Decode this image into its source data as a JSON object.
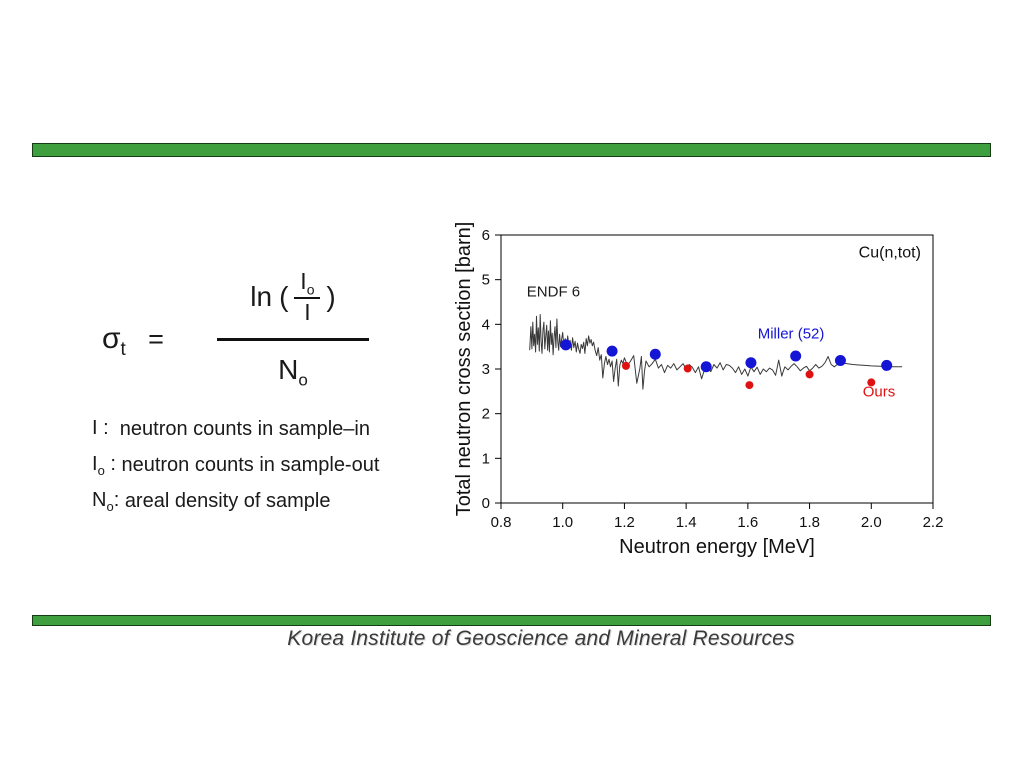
{
  "slide": {
    "background": "#ffffff",
    "bar_color": "#3f9f3f",
    "bar_border_color": "#143d14",
    "footer": "Korea Institute of Geoscience and Mineral Resources"
  },
  "formula": {
    "lhs_base": "σ",
    "lhs_sub": "t",
    "equals": "=",
    "func": "ln",
    "open_paren": "(",
    "num_base": "I",
    "num_sub": "o",
    "inner_den": "I",
    "close_paren": ")",
    "den_base": "N",
    "den_sub": "o"
  },
  "definitions": [
    {
      "sym": "I",
      "sub": "",
      "sep": " :  ",
      "text": "neutron counts in sample–in"
    },
    {
      "sym": "I",
      "sub": "o",
      "sep": " : ",
      "text": "neutron counts in sample-out"
    },
    {
      "sym": "N",
      "sub": "o",
      "sep": ": ",
      "text": "areal density of sample"
    }
  ],
  "chart_data": {
    "type": "line+scatter",
    "title": "Cu(n,tot)",
    "xlabel": "Neutron energy [MeV]",
    "ylabel": "Total neutron cross section [barn]",
    "xlim": [
      0.8,
      2.2
    ],
    "ylim": [
      0,
      6
    ],
    "xticks": [
      0.8,
      1.0,
      1.2,
      1.4,
      1.6,
      1.8,
      2.0,
      2.2
    ],
    "yticks": [
      0,
      1,
      2,
      3,
      4,
      5,
      6
    ],
    "grid": false,
    "frame": true,
    "annotation": {
      "text": "Cu(n,tot)",
      "x": 2.06,
      "y": 5.5,
      "color": "#111111"
    },
    "series": [
      {
        "name": "ENDF 6",
        "type": "line",
        "color": "#3a3a3a",
        "label": {
          "text": "ENDF 6",
          "x": 0.97,
          "y": 4.62,
          "color": "#1a1a1a"
        },
        "points": [
          [
            0.893,
            3.42
          ],
          [
            0.897,
            3.95
          ],
          [
            0.9,
            3.45
          ],
          [
            0.903,
            4.05
          ],
          [
            0.906,
            3.52
          ],
          [
            0.909,
            3.78
          ],
          [
            0.912,
            3.38
          ],
          [
            0.915,
            4.18
          ],
          [
            0.918,
            3.55
          ],
          [
            0.921,
            3.92
          ],
          [
            0.924,
            3.4
          ],
          [
            0.927,
            4.22
          ],
          [
            0.93,
            3.62
          ],
          [
            0.933,
            3.35
          ],
          [
            0.936,
            3.88
          ],
          [
            0.939,
            4.05
          ],
          [
            0.942,
            3.45
          ],
          [
            0.945,
            3.72
          ],
          [
            0.948,
            3.98
          ],
          [
            0.951,
            3.42
          ],
          [
            0.954,
            3.85
          ],
          [
            0.957,
            3.38
          ],
          [
            0.96,
            4.08
          ],
          [
            0.963,
            3.55
          ],
          [
            0.966,
            3.8
          ],
          [
            0.969,
            3.32
          ],
          [
            0.972,
            3.72
          ],
          [
            0.975,
            3.95
          ],
          [
            0.978,
            3.48
          ],
          [
            0.981,
            4.12
          ],
          [
            0.984,
            3.6
          ],
          [
            0.987,
            3.42
          ],
          [
            0.99,
            3.78
          ],
          [
            0.993,
            3.5
          ],
          [
            0.996,
            3.65
          ],
          [
            1.0,
            3.82
          ],
          [
            1.004,
            3.48
          ],
          [
            1.008,
            3.68
          ],
          [
            1.012,
            3.45
          ],
          [
            1.016,
            3.74
          ],
          [
            1.02,
            3.52
          ],
          [
            1.024,
            3.64
          ],
          [
            1.028,
            3.42
          ],
          [
            1.032,
            3.7
          ],
          [
            1.036,
            3.48
          ],
          [
            1.04,
            3.62
          ],
          [
            1.044,
            3.38
          ],
          [
            1.048,
            3.58
          ],
          [
            1.052,
            3.44
          ],
          [
            1.056,
            3.35
          ],
          [
            1.06,
            3.55
          ],
          [
            1.064,
            3.46
          ],
          [
            1.068,
            3.6
          ],
          [
            1.072,
            3.35
          ],
          [
            1.076,
            3.68
          ],
          [
            1.08,
            3.52
          ],
          [
            1.084,
            3.74
          ],
          [
            1.088,
            3.58
          ],
          [
            1.092,
            3.66
          ],
          [
            1.096,
            3.52
          ],
          [
            1.1,
            3.6
          ],
          [
            1.105,
            3.42
          ],
          [
            1.11,
            3.3
          ],
          [
            1.115,
            3.48
          ],
          [
            1.12,
            3.2
          ],
          [
            1.125,
            3.32
          ],
          [
            1.13,
            2.8
          ],
          [
            1.135,
            3.12
          ],
          [
            1.14,
            3.28
          ],
          [
            1.145,
            3.1
          ],
          [
            1.15,
            3.22
          ],
          [
            1.155,
            3.05
          ],
          [
            1.16,
            3.18
          ],
          [
            1.165,
            2.72
          ],
          [
            1.17,
            3.02
          ],
          [
            1.175,
            3.22
          ],
          [
            1.18,
            2.62
          ],
          [
            1.185,
            3.08
          ],
          [
            1.19,
            3.2
          ],
          [
            1.195,
            3.12
          ],
          [
            1.2,
            3.25
          ],
          [
            1.21,
            3.08
          ],
          [
            1.22,
            3.18
          ],
          [
            1.23,
            3.3
          ],
          [
            1.24,
            2.68
          ],
          [
            1.25,
            3.02
          ],
          [
            1.255,
            3.28
          ],
          [
            1.26,
            2.55
          ],
          [
            1.265,
            2.95
          ],
          [
            1.27,
            3.18
          ],
          [
            1.28,
            3.05
          ],
          [
            1.29,
            3.12
          ],
          [
            1.3,
            3.22
          ],
          [
            1.31,
            3.02
          ],
          [
            1.32,
            3.1
          ],
          [
            1.33,
            2.92
          ],
          [
            1.34,
            3.08
          ],
          [
            1.35,
            3.02
          ],
          [
            1.36,
            3.12
          ],
          [
            1.37,
            2.98
          ],
          [
            1.38,
            3.05
          ],
          [
            1.39,
            3.12
          ],
          [
            1.4,
            3.0
          ],
          [
            1.41,
            3.1
          ],
          [
            1.42,
            3.04
          ],
          [
            1.43,
            2.92
          ],
          [
            1.44,
            3.05
          ],
          [
            1.45,
            2.78
          ],
          [
            1.46,
            3.0
          ],
          [
            1.47,
            3.1
          ],
          [
            1.48,
            2.94
          ],
          [
            1.49,
            3.1
          ],
          [
            1.5,
            3.02
          ],
          [
            1.51,
            3.14
          ],
          [
            1.52,
            2.98
          ],
          [
            1.53,
            3.1
          ],
          [
            1.54,
            3.08
          ],
          [
            1.55,
            3.02
          ],
          [
            1.56,
            2.92
          ],
          [
            1.57,
            3.05
          ],
          [
            1.58,
            2.88
          ],
          [
            1.59,
            3.0
          ],
          [
            1.6,
            2.84
          ],
          [
            1.61,
            3.05
          ],
          [
            1.62,
            2.94
          ],
          [
            1.63,
            3.04
          ],
          [
            1.64,
            2.88
          ],
          [
            1.65,
            3.0
          ],
          [
            1.66,
            2.94
          ],
          [
            1.67,
            3.02
          ],
          [
            1.68,
            2.98
          ],
          [
            1.69,
            2.86
          ],
          [
            1.7,
            3.2
          ],
          [
            1.71,
            2.84
          ],
          [
            1.715,
            2.95
          ],
          [
            1.72,
            3.05
          ],
          [
            1.73,
            2.98
          ],
          [
            1.74,
            3.06
          ],
          [
            1.75,
            3.12
          ],
          [
            1.76,
            3.05
          ],
          [
            1.77,
            2.96
          ],
          [
            1.78,
            3.02
          ],
          [
            1.79,
            3.06
          ],
          [
            1.8,
            2.96
          ],
          [
            1.81,
            3.02
          ],
          [
            1.82,
            3.1
          ],
          [
            1.83,
            3.02
          ],
          [
            1.84,
            3.06
          ],
          [
            1.85,
            3.14
          ],
          [
            1.86,
            3.28
          ],
          [
            1.87,
            3.1
          ],
          [
            1.88,
            3.05
          ],
          [
            1.89,
            3.1
          ],
          [
            1.9,
            3.14
          ],
          [
            1.92,
            3.12
          ],
          [
            1.94,
            3.1
          ],
          [
            1.96,
            3.09
          ],
          [
            1.98,
            3.08
          ],
          [
            2.0,
            3.07
          ],
          [
            2.03,
            3.06
          ],
          [
            2.06,
            3.05
          ],
          [
            2.1,
            3.05
          ]
        ]
      },
      {
        "name": "Miller (52)",
        "type": "scatter",
        "color": "#1515d6",
        "marker_r": 5.5,
        "label": {
          "text": "Miller (52)",
          "x": 1.74,
          "y": 3.68,
          "color": "#1515d6"
        },
        "points": [
          [
            1.01,
            3.54
          ],
          [
            1.16,
            3.4
          ],
          [
            1.3,
            3.33
          ],
          [
            1.465,
            3.05
          ],
          [
            1.61,
            3.14
          ],
          [
            1.755,
            3.29
          ],
          [
            1.9,
            3.19
          ],
          [
            2.05,
            3.08
          ]
        ]
      },
      {
        "name": "Ours",
        "type": "scatter",
        "color": "#e01111",
        "marker_r": 4,
        "label": {
          "text": "Ours",
          "x": 2.025,
          "y": 2.38,
          "color": "#e01111"
        },
        "points": [
          [
            1.205,
            3.07
          ],
          [
            1.405,
            3.01
          ],
          [
            1.605,
            2.64
          ],
          [
            1.8,
            2.88
          ],
          [
            2.0,
            2.7
          ]
        ]
      }
    ]
  }
}
